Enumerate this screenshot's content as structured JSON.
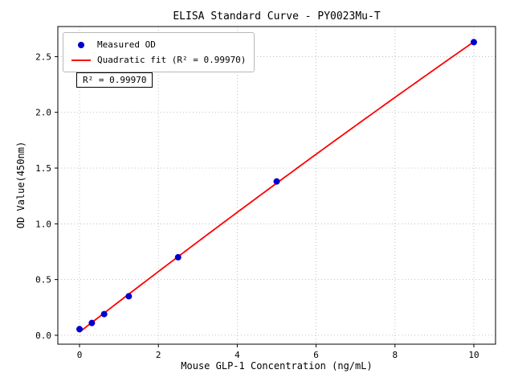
{
  "chart": {
    "title": "ELISA Standard Curve - PY0023Mu-T",
    "xlabel": "Mouse GLP-1 Concentration (ng/mL)",
    "ylabel": "OD Value(450nm)",
    "annotation": "R² = 0.99970",
    "legend": [
      {
        "label": "Measured OD",
        "marker": "dot",
        "color": "#0000cd"
      },
      {
        "label": "Quadratic fit (R² = 0.99970)",
        "marker": "line",
        "color": "#ff0000"
      }
    ]
  },
  "chart_data": {
    "type": "scatter",
    "title": "ELISA Standard Curve - PY0023Mu-T",
    "xlabel": "Mouse GLP-1 Concentration (ng/mL)",
    "ylabel": "OD Value(450nm)",
    "series": [
      {
        "name": "Measured OD",
        "type": "scatter",
        "color": "#0000cd",
        "x": [
          0,
          0.3125,
          0.625,
          1.25,
          2.5,
          5,
          10
        ],
        "y": [
          0.055,
          0.11,
          0.19,
          0.35,
          0.7,
          1.38,
          2.63
        ]
      },
      {
        "name": "Quadratic fit (R² = 0.99970)",
        "type": "line",
        "fit": "quadratic",
        "color": "#ff0000",
        "r_squared": 0.9997
      }
    ],
    "x_ticks": [
      0,
      2,
      4,
      6,
      8,
      10
    ],
    "x_tick_labels": [
      "0",
      "2",
      "4",
      "6",
      "8",
      "10"
    ],
    "y_ticks": [
      0.0,
      0.5,
      1.0,
      1.5,
      2.0,
      2.5
    ],
    "y_tick_labels": [
      "0.0",
      "0.5",
      "1.0",
      "1.5",
      "2.0",
      "2.5"
    ],
    "xlim": [
      -0.55,
      10.55
    ],
    "ylim": [
      -0.08,
      2.77
    ],
    "grid": true,
    "grid_style": "dotted",
    "legend_position": "upper left",
    "annotation": "R² = 0.99970"
  }
}
